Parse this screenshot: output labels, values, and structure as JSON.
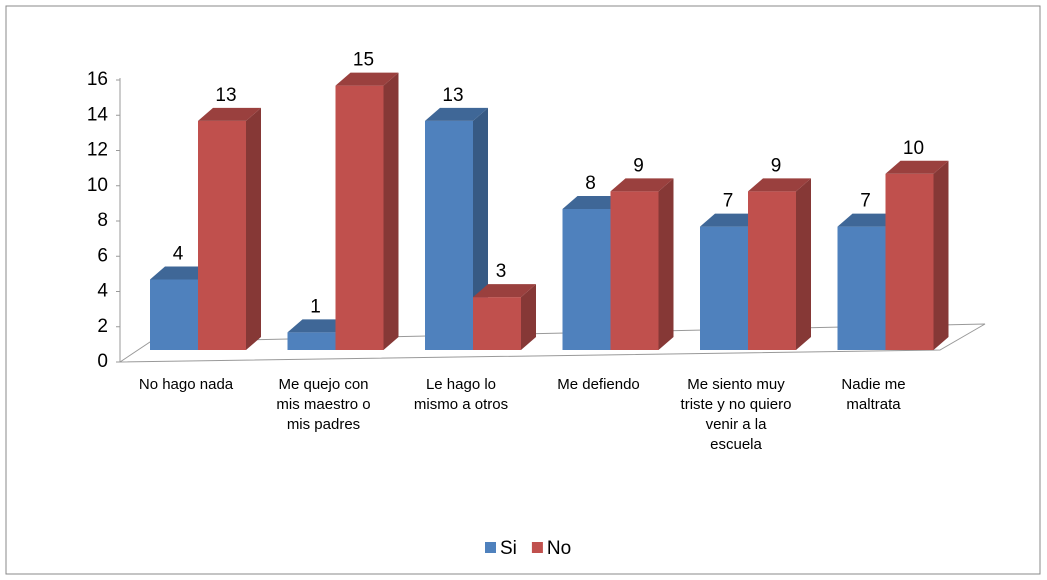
{
  "chart_data": {
    "type": "bar3d",
    "categories": [
      "No hago nada",
      "Me quejo con mis maestro o mis padres",
      "Le hago lo mismo a otros",
      "Me defiendo",
      "Me siento muy triste y no quiero venir a la escuela",
      "Nadie me maltrata"
    ],
    "series": [
      {
        "name": "Si",
        "color": "#4f81bd",
        "values": [
          4,
          1,
          13,
          8,
          7,
          7
        ]
      },
      {
        "name": "No",
        "color": "#c0504d",
        "values": [
          13,
          15,
          3,
          9,
          9,
          10
        ]
      }
    ],
    "ylim": [
      0,
      16
    ],
    "yticks": [
      0,
      2,
      4,
      6,
      8,
      10,
      12,
      14,
      16
    ],
    "legend": "bottom"
  }
}
